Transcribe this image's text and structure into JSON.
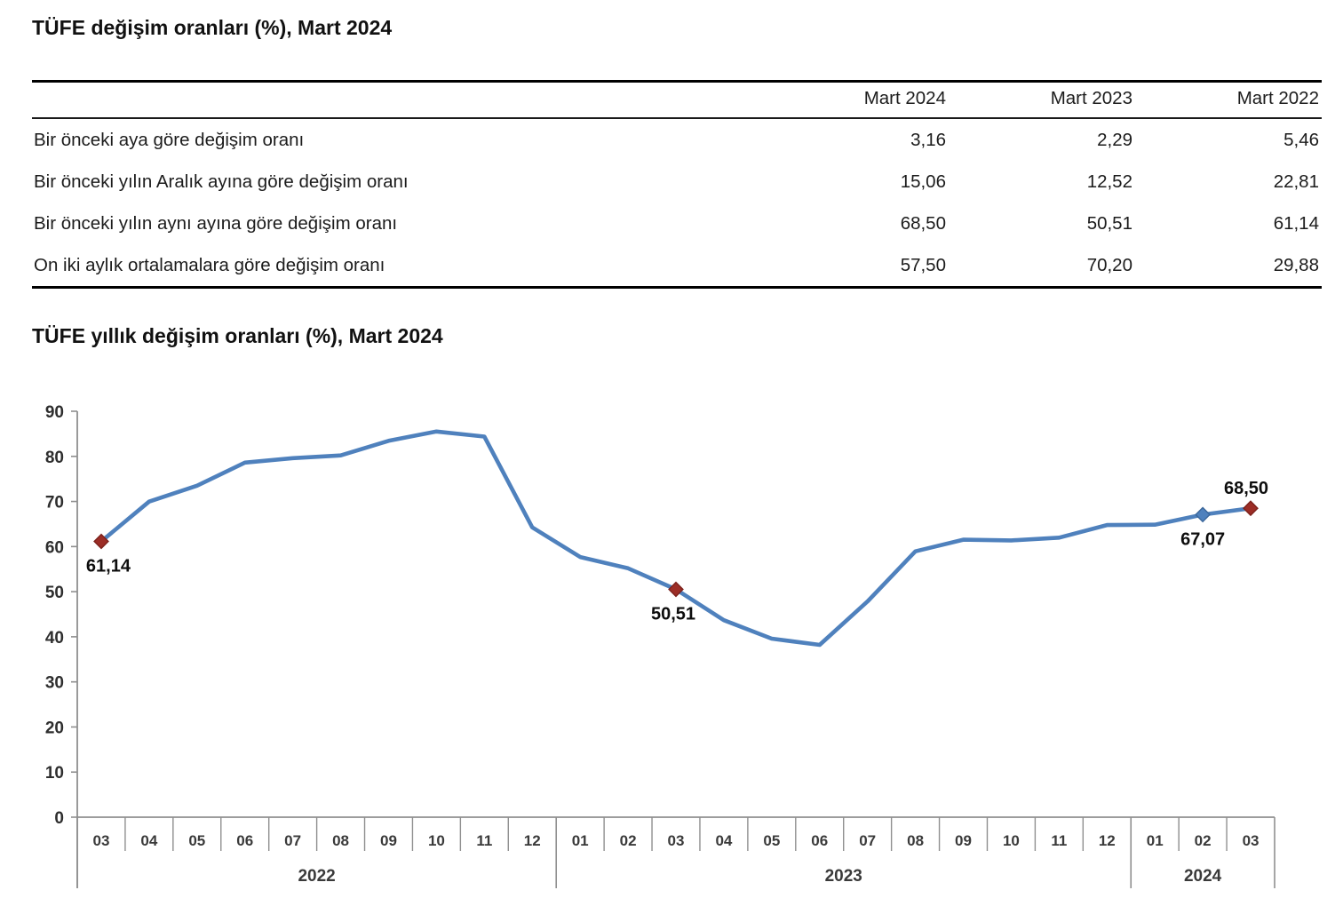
{
  "table_section": {
    "title": "TÜFE değişim oranları (%), Mart 2024",
    "columns": [
      "Mart 2024",
      "Mart 2023",
      "Mart 2022"
    ],
    "rows": [
      {
        "label": "Bir önceki aya göre değişim oranı",
        "values": [
          "3,16",
          "2,29",
          "5,46"
        ]
      },
      {
        "label": "Bir önceki yılın Aralık ayına göre değişim oranı",
        "values": [
          "15,06",
          "12,52",
          "22,81"
        ]
      },
      {
        "label": "Bir önceki yılın aynı ayına göre değişim oranı",
        "values": [
          "68,50",
          "50,51",
          "61,14"
        ]
      },
      {
        "label": "On iki aylık ortalamalara göre değişim oranı",
        "values": [
          "57,50",
          "70,20",
          "29,88"
        ]
      }
    ]
  },
  "chart_section": {
    "title": "TÜFE yıllık değişim oranları (%), Mart 2024"
  },
  "chart_data": {
    "type": "line",
    "title": "TÜFE yıllık değişim oranları (%), Mart 2024",
    "ylim": [
      0,
      90
    ],
    "ytick_step": 10,
    "grid": false,
    "legend": "none",
    "xlabel": "",
    "ylabel": "",
    "line_color": "#4f81bd",
    "marker_red": "#9c2d26",
    "marker_red_stroke": "#7c211b",
    "marker_blue": "#4f81bd",
    "marker_blue_stroke": "#3a669a",
    "axis_color": "#8f8f8f",
    "axis_text_color": "#3a3a3a",
    "year_groups": [
      {
        "year": "2022",
        "months": [
          "03",
          "04",
          "05",
          "06",
          "07",
          "08",
          "09",
          "10",
          "11",
          "12"
        ]
      },
      {
        "year": "2023",
        "months": [
          "01",
          "02",
          "03",
          "04",
          "05",
          "06",
          "07",
          "08",
          "09",
          "10",
          "11",
          "12"
        ]
      },
      {
        "year": "2024",
        "months": [
          "01",
          "02",
          "03"
        ]
      }
    ],
    "values": [
      61.14,
      69.97,
      73.5,
      78.62,
      79.6,
      80.21,
      83.45,
      85.51,
      84.39,
      64.27,
      57.68,
      55.18,
      50.51,
      43.68,
      39.59,
      38.21,
      47.83,
      58.94,
      61.53,
      61.36,
      61.98,
      64.77,
      64.86,
      67.07,
      68.5
    ],
    "marked_points": [
      {
        "index": 0,
        "label": "61,14",
        "color": "red",
        "label_position": "below",
        "label_dx": 8
      },
      {
        "index": 12,
        "label": "50,51",
        "color": "red",
        "label_position": "below",
        "label_dx": -3
      },
      {
        "index": 23,
        "label": "67,07",
        "color": "blue",
        "label_position": "below",
        "label_dx": 0
      },
      {
        "index": 24,
        "label": "68,50",
        "color": "red",
        "label_position": "above",
        "label_dx": -5
      }
    ]
  }
}
